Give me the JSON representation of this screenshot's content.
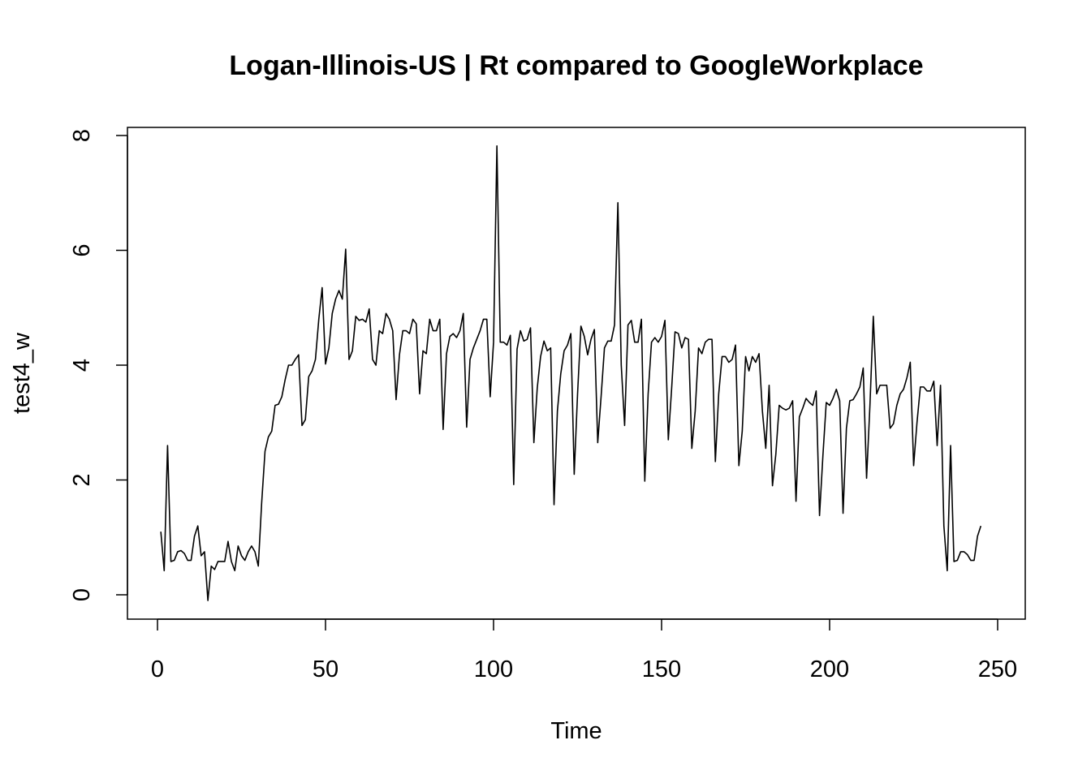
{
  "chart_data": {
    "type": "line",
    "title": "Logan-Illinois-US | Rt compared to GoogleWorkplace",
    "xlabel": "Time",
    "ylabel": "test4_w",
    "xlim": [
      0,
      250
    ],
    "ylim": [
      0,
      8
    ],
    "x_ticks": [
      "0",
      "50",
      "100",
      "150",
      "200",
      "250"
    ],
    "y_ticks": [
      "0",
      "2",
      "4",
      "6",
      "8"
    ],
    "grid": false,
    "legend": "none",
    "series": [
      {
        "x_start": 1,
        "values": [
          1.1,
          0.42,
          2.6,
          0.58,
          0.6,
          0.75,
          0.77,
          0.72,
          0.6,
          0.6,
          1.02,
          1.2,
          0.68,
          0.75,
          -0.1,
          0.5,
          0.44,
          0.58,
          0.58,
          0.58,
          0.93,
          0.58,
          0.42,
          0.85,
          0.68,
          0.6,
          0.75,
          0.85,
          0.75,
          0.5,
          1.6,
          2.5,
          2.75,
          2.85,
          3.3,
          3.32,
          3.45,
          3.75,
          4.0,
          4.0,
          4.1,
          4.18,
          2.95,
          3.05,
          3.8,
          3.9,
          4.1,
          4.8,
          5.35,
          4.02,
          4.3,
          4.9,
          5.15,
          5.3,
          5.15,
          6.02,
          4.1,
          4.25,
          4.85,
          4.78,
          4.8,
          4.75,
          4.98,
          4.1,
          4.0,
          4.6,
          4.55,
          4.9,
          4.8,
          4.6,
          3.4,
          4.18,
          4.6,
          4.6,
          4.55,
          4.8,
          4.72,
          3.5,
          4.25,
          4.2,
          4.8,
          4.6,
          4.6,
          4.8,
          2.88,
          4.2,
          4.5,
          4.55,
          4.48,
          4.6,
          4.9,
          2.92,
          4.1,
          4.3,
          4.45,
          4.6,
          4.8,
          4.8,
          3.45,
          4.4,
          7.82,
          4.4,
          4.4,
          4.35,
          4.52,
          1.92,
          4.28,
          4.6,
          4.42,
          4.45,
          4.65,
          2.65,
          3.6,
          4.15,
          4.42,
          4.25,
          4.3,
          1.57,
          3.2,
          3.85,
          4.25,
          4.35,
          4.55,
          2.1,
          3.5,
          4.68,
          4.5,
          4.18,
          4.45,
          4.62,
          2.65,
          3.45,
          4.3,
          4.42,
          4.42,
          4.7,
          6.83,
          4.0,
          2.95,
          4.7,
          4.78,
          4.4,
          4.4,
          4.8,
          1.98,
          3.5,
          4.4,
          4.48,
          4.4,
          4.5,
          4.78,
          2.7,
          3.6,
          4.58,
          4.55,
          4.3,
          4.48,
          4.45,
          2.55,
          3.2,
          4.3,
          4.2,
          4.4,
          4.45,
          4.45,
          2.32,
          3.5,
          4.15,
          4.15,
          4.05,
          4.1,
          4.35,
          2.25,
          2.85,
          4.15,
          3.9,
          4.15,
          4.05,
          4.2,
          3.2,
          2.55,
          3.65,
          1.9,
          2.45,
          3.3,
          3.25,
          3.22,
          3.25,
          3.38,
          1.63,
          3.1,
          3.25,
          3.42,
          3.35,
          3.3,
          3.55,
          1.38,
          2.42,
          3.35,
          3.3,
          3.42,
          3.58,
          3.38,
          1.42,
          2.9,
          3.38,
          3.4,
          3.5,
          3.62,
          3.95,
          2.03,
          3.3,
          4.85,
          3.5,
          3.65,
          3.65,
          3.65,
          2.9,
          2.98,
          3.3,
          3.5,
          3.58,
          3.78,
          4.05,
          2.25,
          3.0,
          3.62,
          3.62,
          3.55,
          3.55,
          3.72,
          2.6,
          3.65,
          1.2,
          0.42,
          2.6,
          0.58,
          0.6,
          0.75,
          0.75,
          0.7,
          0.6,
          0.6,
          1.02,
          1.2
        ]
      }
    ]
  }
}
